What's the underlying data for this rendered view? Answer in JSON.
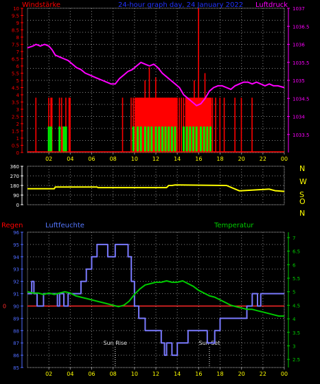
{
  "colors": {
    "background": "#000000",
    "grid": "#8a8a8a",
    "axis_left_top": "#ff0000",
    "axis_right_top": "#ff00ff",
    "axis_left_bottom": "#4f6bff",
    "axis_right_bottom": "#00cc00",
    "x_ticks": "#ffff00",
    "wind_speed": "#ff0000",
    "wind_gust": "#00ee00",
    "pressure": "#ff00ff",
    "wind_dir": "#ffff00",
    "humidity": "#7a7aff",
    "temperature": "#00cc00",
    "rain": "#ff2a2a",
    "compass": "#ffff00",
    "sun_marker": "#ffffff"
  },
  "header": {
    "left_label": "Windstärke",
    "center_label": "24-hour graph day, 24 January 2022",
    "right_label": "Luftdruck"
  },
  "bottom_header": {
    "rain_label": "Regen",
    "humidity_label": "Luftfeuchte",
    "temperature_label": "Temperatur"
  },
  "annotations": {
    "sunrise": "Sun Rise",
    "sunset": "Sun Set"
  },
  "x_axis": {
    "tick_labels": [
      "02",
      "04",
      "06",
      "08",
      "10",
      "12",
      "14",
      "16",
      "18",
      "20",
      "22",
      "00"
    ]
  },
  "compass": {
    "letters": [
      "N",
      "W",
      "S",
      "O",
      "N"
    ]
  },
  "chart_data": [
    {
      "type": "bar",
      "title": "Windstärke / Luftdruck",
      "left_axis": {
        "label": "Windstärke",
        "ylim": [
          0,
          10
        ],
        "ticks": [
          "0",
          "0.5",
          "1",
          "1.5",
          "2",
          "2.5",
          "3",
          "3.5",
          "4",
          "4.5",
          "5",
          "5.5",
          "6",
          "6.5",
          "7",
          "7.5",
          "8",
          "8.5",
          "9",
          "9.5",
          "10"
        ]
      },
      "right_axis": {
        "label": "Luftdruck",
        "ylim": [
          1033,
          1037
        ],
        "ticks": [
          "1033.5",
          "1034",
          "1034.5",
          "1035",
          "1035.5",
          "1036",
          "1036.5",
          "1037"
        ]
      },
      "grid": true,
      "x_hours": [
        0,
        24
      ],
      "wind_speed_bars": [
        [
          0.8,
          3.8
        ],
        [
          2.0,
          3.8
        ],
        [
          2.2,
          3.8
        ],
        [
          2.3,
          3.8
        ],
        [
          3.0,
          3.8
        ],
        [
          3.2,
          3.8
        ],
        [
          3.3,
          1.8
        ],
        [
          3.6,
          3.8
        ],
        [
          3.9,
          3.8
        ],
        [
          4.0,
          3.8
        ],
        [
          8.9,
          3.8
        ],
        [
          9.7,
          3.8
        ],
        [
          9.9,
          3.8
        ],
        [
          10.1,
          3.8
        ],
        [
          10.3,
          3.8
        ],
        [
          10.5,
          3.8
        ],
        [
          10.7,
          3.8
        ],
        [
          11.0,
          5.0
        ],
        [
          11.2,
          3.8
        ],
        [
          11.4,
          5.9
        ],
        [
          11.6,
          3.8
        ],
        [
          11.8,
          3.8
        ],
        [
          12.0,
          5.2
        ],
        [
          12.2,
          3.8
        ],
        [
          12.4,
          3.8
        ],
        [
          12.6,
          3.8
        ],
        [
          12.8,
          3.8
        ],
        [
          13.0,
          3.8
        ],
        [
          13.2,
          3.8
        ],
        [
          13.5,
          3.8
        ],
        [
          13.8,
          3.8
        ],
        [
          14.0,
          3.8
        ],
        [
          14.2,
          3.8
        ],
        [
          14.4,
          3.8
        ],
        [
          14.6,
          3.8
        ],
        [
          14.8,
          3.8
        ],
        [
          15.0,
          3.8
        ],
        [
          15.2,
          3.8
        ],
        [
          15.4,
          3.8
        ],
        [
          15.6,
          5.0
        ],
        [
          15.8,
          3.8
        ],
        [
          16.0,
          10
        ],
        [
          16.2,
          3.8
        ],
        [
          16.4,
          3.8
        ],
        [
          16.6,
          5.5
        ],
        [
          16.8,
          3.8
        ],
        [
          17.0,
          3.8
        ],
        [
          17.3,
          3.8
        ],
        [
          17.6,
          3.8
        ],
        [
          18.0,
          3.8
        ],
        [
          18.4,
          3.8
        ],
        [
          19.4,
          3.8
        ],
        [
          20.0,
          3.8
        ],
        [
          21.0,
          3.8
        ]
      ],
      "wind_speed_band": [
        [
          10.0,
          14.0,
          3.8
        ],
        [
          14.8,
          17.2,
          3.8
        ]
      ],
      "wind_gust_bars": [
        [
          2.0,
          1.8
        ],
        [
          2.2,
          1.8
        ],
        [
          3.0,
          1.8
        ],
        [
          3.4,
          1.8
        ],
        [
          3.6,
          1.8
        ],
        [
          9.9,
          1.8
        ],
        [
          10.3,
          1.8
        ],
        [
          10.6,
          1.8
        ],
        [
          11.0,
          1.8
        ],
        [
          11.3,
          1.8
        ],
        [
          11.6,
          1.8
        ],
        [
          12.0,
          1.8
        ],
        [
          12.3,
          1.8
        ],
        [
          12.6,
          1.8
        ],
        [
          12.9,
          1.8
        ],
        [
          13.2,
          1.8
        ],
        [
          13.5,
          1.8
        ],
        [
          13.8,
          1.8
        ],
        [
          14.6,
          1.8
        ],
        [
          14.9,
          1.8
        ],
        [
          15.2,
          1.8
        ],
        [
          15.5,
          1.8
        ],
        [
          15.8,
          1.8
        ],
        [
          16.2,
          1.8
        ],
        [
          16.5,
          1.8
        ],
        [
          16.8,
          1.8
        ],
        [
          17.1,
          1.8
        ]
      ],
      "pressure_series": {
        "x": [
          0,
          0.5,
          0.8,
          1.2,
          1.6,
          2.0,
          2.3,
          2.6,
          3.0,
          3.4,
          3.8,
          4.2,
          4.6,
          5.0,
          5.4,
          5.8,
          6.2,
          6.6,
          7.0,
          7.4,
          7.8,
          8.2,
          8.6,
          9.0,
          9.4,
          9.8,
          10.2,
          10.6,
          11.0,
          11.4,
          11.8,
          12.2,
          12.6,
          13.0,
          13.4,
          13.8,
          14.2,
          14.6,
          15.0,
          15.4,
          15.8,
          16.2,
          16.6,
          17.0,
          17.4,
          17.8,
          18.2,
          18.6,
          19.0,
          19.4,
          19.8,
          20.2,
          20.6,
          21.0,
          21.4,
          21.8,
          22.2,
          22.6,
          23.0,
          23.4,
          24.0
        ],
        "y": [
          1035.9,
          1035.95,
          1036.0,
          1035.95,
          1036.0,
          1035.95,
          1035.85,
          1035.7,
          1035.65,
          1035.6,
          1035.55,
          1035.45,
          1035.35,
          1035.3,
          1035.2,
          1035.15,
          1035.1,
          1035.05,
          1035.0,
          1034.95,
          1034.9,
          1034.9,
          1035.05,
          1035.15,
          1035.25,
          1035.3,
          1035.4,
          1035.5,
          1035.45,
          1035.4,
          1035.45,
          1035.35,
          1035.2,
          1035.1,
          1035.0,
          1034.9,
          1034.8,
          1034.6,
          1034.5,
          1034.4,
          1034.3,
          1034.35,
          1034.5,
          1034.7,
          1034.8,
          1034.85,
          1034.85,
          1034.8,
          1034.75,
          1034.85,
          1034.9,
          1034.95,
          1034.95,
          1034.9,
          1034.95,
          1034.9,
          1034.85,
          1034.9,
          1034.85,
          1034.85,
          1034.8
        ]
      }
    },
    {
      "type": "line",
      "title": "Windrichtung",
      "ylim": [
        0,
        360
      ],
      "ticks": [
        "0",
        "90",
        "180",
        "270",
        "360"
      ],
      "grid": true,
      "wind_direction": {
        "x": [
          0,
          2.5,
          2.6,
          5.5,
          5.6,
          6.5,
          6.6,
          13.0,
          13.2,
          13.5,
          13.8,
          14.2,
          18.5,
          18.6,
          19.8,
          19.9,
          22.5,
          22.6,
          23.2,
          23.3,
          24.0
        ],
        "y": [
          150,
          150,
          165,
          165,
          165,
          165,
          160,
          160,
          180,
          180,
          185,
          185,
          180,
          180,
          130,
          130,
          145,
          145,
          130,
          130,
          125
        ]
      }
    },
    {
      "type": "line",
      "title": "Regen / Luftfeuchte / Temperatur",
      "left_axis": {
        "label": "Luftfeuchte",
        "ylim": [
          85,
          96
        ],
        "ticks": [
          "85",
          "86",
          "87",
          "88",
          "89",
          "90",
          "91",
          "92",
          "93",
          "94",
          "95",
          "96"
        ]
      },
      "right_axis": {
        "label": "Temperatur",
        "ylim": [
          2.2,
          7.2
        ],
        "ticks": [
          "2.5",
          "3",
          "3.5",
          "4",
          "4.5",
          "5",
          "5.5",
          "6",
          "6.5",
          "7"
        ]
      },
      "rain_axis": {
        "label": "Regen",
        "ticks": [
          "0"
        ],
        "value": 0
      },
      "grid": true,
      "humidity": {
        "x": [
          0,
          0.4,
          0.4,
          0.6,
          0.6,
          0.9,
          0.9,
          1.5,
          1.5,
          2.8,
          2.8,
          3.0,
          3.0,
          3.4,
          3.4,
          3.8,
          3.8,
          5.0,
          5.0,
          5.5,
          5.5,
          6.0,
          6.0,
          6.5,
          6.5,
          7.5,
          7.5,
          8.2,
          8.2,
          9.4,
          9.4,
          9.7,
          9.7,
          10.0,
          10.0,
          10.4,
          10.4,
          11.0,
          11.0,
          12.5,
          12.5,
          12.8,
          12.8,
          13.0,
          13.0,
          13.5,
          13.5,
          13.8,
          13.8,
          14.0,
          14.0,
          15.0,
          15.0,
          16.8,
          16.8,
          17.5,
          17.5,
          18.0,
          18.0,
          19.0,
          19.0,
          19.5,
          19.5,
          20.5,
          20.5,
          21.0,
          21.0,
          21.5,
          21.5,
          21.8,
          21.8,
          24.0
        ],
        "y": [
          91,
          91,
          92,
          92,
          91,
          91,
          90,
          90,
          91,
          91,
          90,
          90,
          91,
          91,
          90,
          90,
          91,
          91,
          92,
          92,
          93,
          93,
          94,
          94,
          95,
          95,
          94,
          94,
          95,
          95,
          94,
          94,
          92,
          92,
          90,
          90,
          89,
          89,
          88,
          88,
          87,
          87,
          86,
          86,
          87,
          87,
          86,
          86,
          86,
          86,
          87,
          87,
          88,
          88,
          87,
          87,
          88,
          88,
          89,
          89,
          89,
          89,
          89,
          89,
          90,
          90,
          91,
          91,
          90,
          90,
          91,
          91
        ]
      },
      "temperature": {
        "x": [
          0,
          0.5,
          1.0,
          1.5,
          2.0,
          2.5,
          3.0,
          3.5,
          4.0,
          4.5,
          5.0,
          5.5,
          6.0,
          6.5,
          7.0,
          7.5,
          8.0,
          8.5,
          9.0,
          9.5,
          10.0,
          10.5,
          11.0,
          11.5,
          12.0,
          12.5,
          13.0,
          13.5,
          14.0,
          14.5,
          15.0,
          15.5,
          16.0,
          16.5,
          17.0,
          17.5,
          18.0,
          18.5,
          19.0,
          19.5,
          20.0,
          20.5,
          21.0,
          21.5,
          22.0,
          22.5,
          23.0,
          23.5,
          24.0
        ],
        "y": [
          5.0,
          4.95,
          4.95,
          4.9,
          4.95,
          4.9,
          4.95,
          5.0,
          4.95,
          4.85,
          4.8,
          4.75,
          4.7,
          4.65,
          4.6,
          4.55,
          4.5,
          4.45,
          4.5,
          4.65,
          4.9,
          5.1,
          5.25,
          5.3,
          5.35,
          5.35,
          5.4,
          5.35,
          5.35,
          5.4,
          5.3,
          5.2,
          5.05,
          4.95,
          4.85,
          4.8,
          4.7,
          4.6,
          4.5,
          4.45,
          4.4,
          4.35,
          4.35,
          4.3,
          4.25,
          4.2,
          4.15,
          4.1,
          4.1
        ]
      },
      "sunrise_hour": 8.2,
      "sunset_hour": 17.0
    }
  ]
}
